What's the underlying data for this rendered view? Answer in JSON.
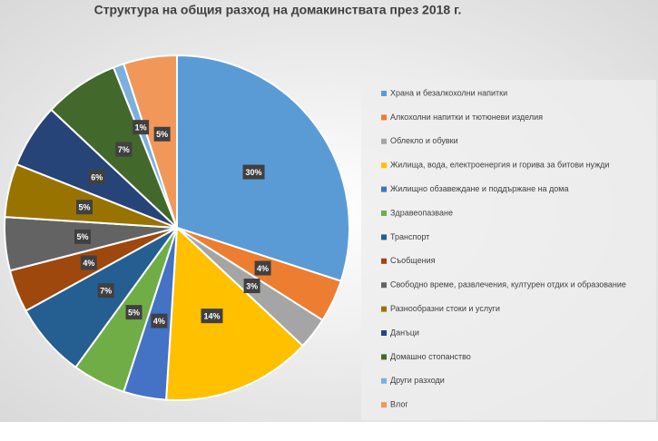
{
  "chart_data": {
    "type": "pie",
    "title": "Структура на общия разход на домакинствата през 2018 г.",
    "categories": [
      "Храна и безалкохолни напитки",
      "Алкохолни напитки и тютюневи изделия",
      "Облекло и обувки",
      "Жилища, вода, електроенергия и горива за битови нужди",
      "Жилищно обзавеждане и поддържане на дома",
      "Здравеопазване",
      "Транспорт",
      "Съобщения",
      "Свободно време, развлечения, културен отдих и образование",
      "Разнообразни стоки и услуги",
      "Данъци",
      "Домашно стопанство",
      "Други разходи",
      "Влог"
    ],
    "values": [
      30,
      4,
      3,
      14,
      4,
      5,
      7,
      4,
      5,
      5,
      6,
      7,
      1,
      5
    ],
    "value_labels": [
      "30%",
      "4%",
      "3%",
      "14%",
      "4%",
      "5%",
      "7%",
      "4%",
      "5%",
      "5%",
      "6%",
      "7%",
      "1%",
      "5%"
    ],
    "colors": [
      "#5b9bd5",
      "#ed7d31",
      "#a5a5a5",
      "#ffc000",
      "#4472c4",
      "#70ad47",
      "#255e91",
      "#9e480e",
      "#636363",
      "#997300",
      "#264478",
      "#43682b",
      "#7cafdd",
      "#f1975a"
    ],
    "legend": "right"
  }
}
